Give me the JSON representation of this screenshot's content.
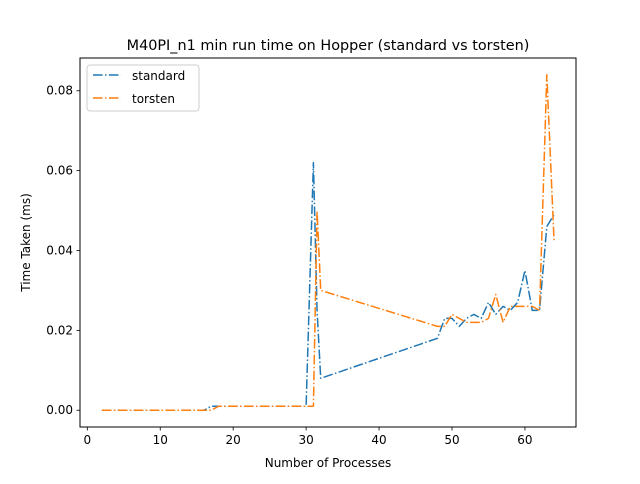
{
  "chart_data": {
    "type": "line",
    "title": "M40PI_n1 min run time on Hopper (standard vs torsten)",
    "xlabel": "Number of Processes",
    "ylabel": "Time Taken (ms)",
    "xlim": [
      -1,
      67
    ],
    "ylim": [
      -0.0042,
      0.0882
    ],
    "xticks": [
      0,
      10,
      20,
      30,
      40,
      50,
      60
    ],
    "yticks": [
      0.0,
      0.02,
      0.04,
      0.06,
      0.08
    ],
    "ytick_labels": [
      "0.00",
      "0.02",
      "0.04",
      "0.06",
      "0.08"
    ],
    "grid": false,
    "legend_position": "top-left",
    "series": [
      {
        "name": "standard",
        "color": "#1f77b4",
        "linestyle": "dashdot",
        "x": [
          2,
          16,
          17,
          30,
          31,
          31.5,
          32,
          48,
          49,
          50,
          51,
          52,
          53,
          54,
          55,
          56,
          57,
          58,
          59,
          60,
          61,
          62,
          63,
          64
        ],
        "y": [
          0.0,
          0.0,
          0.001,
          0.001,
          0.062,
          0.025,
          0.008,
          0.018,
          0.023,
          0.023,
          0.021,
          0.023,
          0.024,
          0.023,
          0.027,
          0.024,
          0.026,
          0.025,
          0.027,
          0.035,
          0.025,
          0.025,
          0.046,
          0.049
        ]
      },
      {
        "name": "torsten",
        "color": "#ff7f0e",
        "linestyle": "dashdot",
        "x": [
          2,
          17,
          18,
          30,
          31,
          31.5,
          32,
          48,
          49,
          50,
          51,
          52,
          53,
          54,
          55,
          56,
          57,
          58,
          59,
          60,
          61,
          62,
          63,
          64
        ],
        "y": [
          0.0,
          0.0,
          0.001,
          0.001,
          0.001,
          0.05,
          0.03,
          0.021,
          0.021,
          0.024,
          0.023,
          0.022,
          0.022,
          0.022,
          0.023,
          0.029,
          0.022,
          0.026,
          0.026,
          0.026,
          0.026,
          0.025,
          0.084,
          0.042
        ]
      }
    ]
  }
}
